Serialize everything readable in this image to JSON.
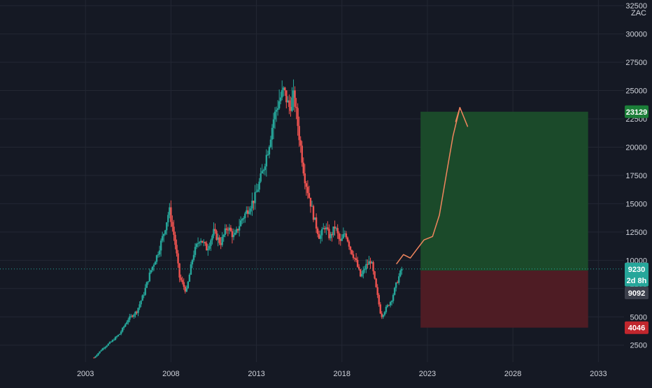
{
  "chart_data": {
    "type": "candlestick",
    "currency": "ZAC",
    "y_axis": {
      "ticks": [
        32500,
        30000,
        27500,
        25000,
        22500,
        20000,
        17500,
        15000,
        12500,
        10000,
        7500,
        5000,
        2500
      ],
      "range": [
        1000,
        33000
      ]
    },
    "x_axis": {
      "ticks": [
        "2003",
        "2008",
        "2013",
        "2018",
        "2023",
        "2028",
        "2033"
      ],
      "range": [
        1998,
        2034.5
      ]
    },
    "grid": true,
    "price_path": [
      [
        2003.5,
        1400
      ],
      [
        2004,
        2200
      ],
      [
        2004.5,
        2800
      ],
      [
        2005,
        3500
      ],
      [
        2005.5,
        4800
      ],
      [
        2006,
        5500
      ],
      [
        2006.4,
        7000
      ],
      [
        2006.8,
        9000
      ],
      [
        2007.2,
        10500
      ],
      [
        2007.6,
        12500
      ],
      [
        2007.9,
        14500
      ],
      [
        2008.2,
        12000
      ],
      [
        2008.5,
        8500
      ],
      [
        2008.9,
        7200
      ],
      [
        2009.3,
        10500
      ],
      [
        2009.7,
        12000
      ],
      [
        2010.1,
        11000
      ],
      [
        2010.5,
        12500
      ],
      [
        2010.9,
        11500
      ],
      [
        2011.3,
        13000
      ],
      [
        2011.7,
        12000
      ],
      [
        2012.1,
        13500
      ],
      [
        2012.5,
        14500
      ],
      [
        2012.9,
        15500
      ],
      [
        2013.3,
        17500
      ],
      [
        2013.7,
        20000
      ],
      [
        2014.0,
        22500
      ],
      [
        2014.3,
        24000
      ],
      [
        2014.6,
        25000
      ],
      [
        2014.9,
        23500
      ],
      [
        2015.2,
        24500
      ],
      [
        2015.5,
        21000
      ],
      [
        2015.8,
        17500
      ],
      [
        2016.1,
        15500
      ],
      [
        2016.4,
        13500
      ],
      [
        2016.7,
        12000
      ],
      [
        2017.0,
        13000
      ],
      [
        2017.3,
        12000
      ],
      [
        2017.6,
        13000
      ],
      [
        2017.9,
        11500
      ],
      [
        2018.2,
        12500
      ],
      [
        2018.5,
        11000
      ],
      [
        2018.8,
        10000
      ],
      [
        2019.1,
        8500
      ],
      [
        2019.4,
        9500
      ],
      [
        2019.7,
        10000
      ],
      [
        2020.0,
        7500
      ],
      [
        2020.3,
        5000
      ],
      [
        2020.6,
        5800
      ],
      [
        2020.9,
        6500
      ],
      [
        2021.2,
        8000
      ],
      [
        2021.5,
        9230
      ]
    ],
    "current_price": 9230,
    "countdown": "2d 8h",
    "position": {
      "x_start": 2022.6,
      "x_end": 2032.4,
      "target": 23129,
      "entry": 9092,
      "stop": 4046
    },
    "annotations": {
      "projection_path": [
        [
          2021.2,
          9700
        ],
        [
          2021.6,
          10500
        ],
        [
          2022.0,
          10200
        ],
        [
          2022.4,
          11000
        ],
        [
          2022.8,
          11800
        ],
        [
          2023.3,
          12100
        ],
        [
          2023.7,
          14000
        ],
        [
          2024.1,
          17500
        ],
        [
          2024.5,
          21000
        ],
        [
          2024.9,
          23500
        ]
      ]
    },
    "colors": {
      "up": "#26a69a",
      "down": "#ef5350",
      "target_zone": "#1b4a2a",
      "stop_zone": "#4e1c24",
      "target_tag": "#1b7e38",
      "stop_tag": "#c1262d",
      "entry_tag": "#3b3f4b",
      "price_tag": "#26a69a",
      "projection": "#f1865e",
      "price_line": "#26a69a"
    }
  }
}
